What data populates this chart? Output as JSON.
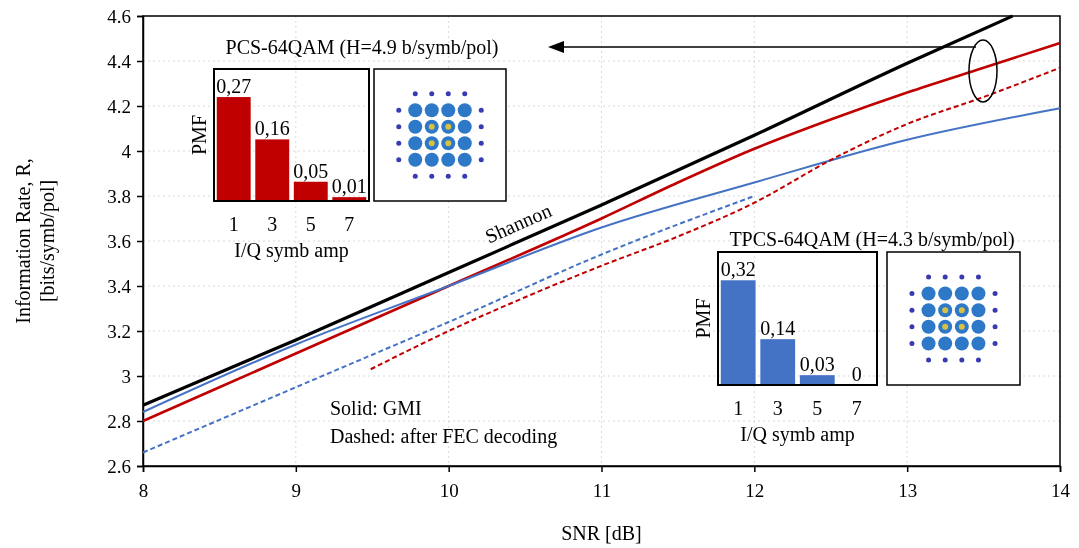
{
  "chart_data": [
    {
      "type": "line",
      "xlabel": "SNR [dB]",
      "ylabel": "Information Rate, R,\n[bits/symb/pol]",
      "xlim": [
        8,
        14
      ],
      "ylim": [
        2.6,
        4.6
      ],
      "xticks": [
        8,
        9,
        10,
        11,
        12,
        13,
        14
      ],
      "yticks": [
        2.6,
        2.8,
        3,
        3.2,
        3.4,
        3.6,
        3.8,
        4,
        4.2,
        4.4,
        4.6
      ],
      "grid": true,
      "line_style": "solid",
      "marker": "none",
      "series": [
        {
          "name": "Shannon",
          "color": "#000000",
          "x": [
            8,
            9,
            10,
            11,
            12,
            13,
            13.69
          ],
          "values": [
            2.87,
            3.16,
            3.46,
            3.76,
            4.07,
            4.39,
            4.6
          ]
        },
        {
          "color": "#c00000",
          "x": [
            8,
            9,
            10,
            11,
            11.5,
            12,
            12.5,
            13,
            13.5,
            14
          ],
          "values": [
            2.8,
            3.1,
            3.4,
            3.7,
            3.86,
            4.01,
            4.14,
            4.26,
            4.37,
            4.48
          ]
        },
        {
          "color": "#4472c4",
          "x": [
            8,
            9,
            10,
            11,
            12,
            13,
            14
          ],
          "values": [
            2.84,
            3.14,
            3.4,
            3.66,
            3.86,
            4.05,
            4.19
          ]
        },
        {
          "color": "#4472c4",
          "line_style": "dashed",
          "x": [
            8,
            9,
            10,
            11,
            12
          ],
          "values": [
            2.66,
            2.95,
            3.24,
            3.54,
            3.8
          ]
        },
        {
          "color": "#c00000",
          "line_style": "dashed",
          "x": [
            9.49,
            10,
            10.5,
            11,
            11.5,
            12,
            12.5,
            13,
            13.5,
            14
          ],
          "values": [
            3.03,
            3.2,
            3.35,
            3.49,
            3.62,
            3.77,
            3.96,
            4.12,
            4.24,
            4.37
          ]
        }
      ],
      "annotations": [
        "Solid: GMI",
        "Dashed: after FEC decoding"
      ]
    },
    {
      "type": "bar",
      "title": "PCS-64QAM  (H=4.9  b/symb/pol)",
      "xlabel": "I/Q symb amp",
      "ylabel": "PMF",
      "categories": [
        "1",
        "3",
        "5",
        "7"
      ],
      "values": [
        0.27,
        0.16,
        0.05,
        0.01
      ],
      "value_labels": [
        "0,27",
        "0,16",
        "0,05",
        "0,01"
      ],
      "color": "#c00000"
    },
    {
      "type": "bar",
      "title": "TPCS-64QAM  (H=4.3  b/symb/pol)",
      "xlabel": "I/Q symb amp",
      "ylabel": "PMF",
      "categories": [
        "1",
        "3",
        "5",
        "7"
      ],
      "values": [
        0.32,
        0.14,
        0.03,
        0
      ],
      "value_labels": [
        "0,32",
        "0,14",
        "0,03",
        "0"
      ],
      "color": "#4472c4"
    }
  ]
}
